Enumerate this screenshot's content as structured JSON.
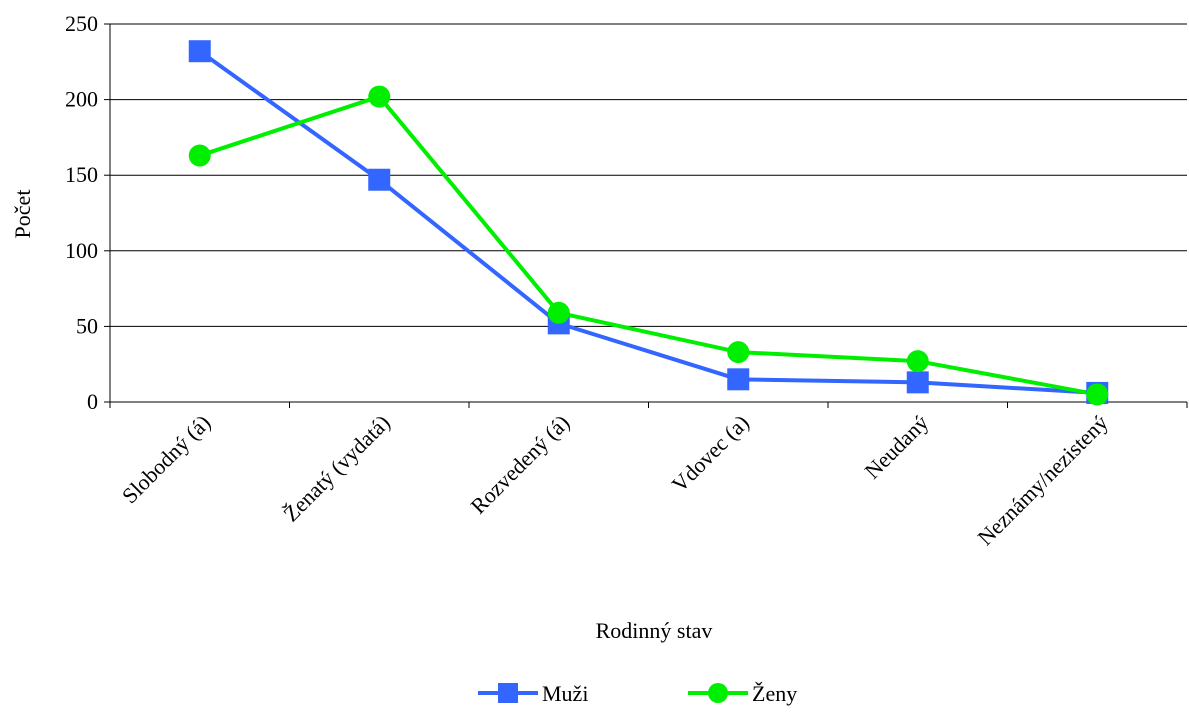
{
  "chart_data": {
    "type": "line",
    "title": "",
    "xlabel": "Rodinný stav",
    "ylabel": "Počet",
    "categories": [
      "Slobodný (á)",
      "Ženatý (vydatá)",
      "Rozvedený (á)",
      "Vdovec (a)",
      "Neudaný",
      "Neznámy/nezistený"
    ],
    "ylim": [
      0,
      250
    ],
    "yticks": [
      0,
      50,
      100,
      150,
      200,
      250
    ],
    "grid": "horizontal",
    "legend_position": "bottom",
    "series": [
      {
        "name": "Muži",
        "values": [
          232,
          147,
          52,
          15,
          13,
          6
        ],
        "color": "#3366ff",
        "marker": "square"
      },
      {
        "name": "Ženy",
        "values": [
          163,
          202,
          59,
          33,
          27,
          5
        ],
        "color": "#00ee00",
        "marker": "circle"
      }
    ]
  }
}
